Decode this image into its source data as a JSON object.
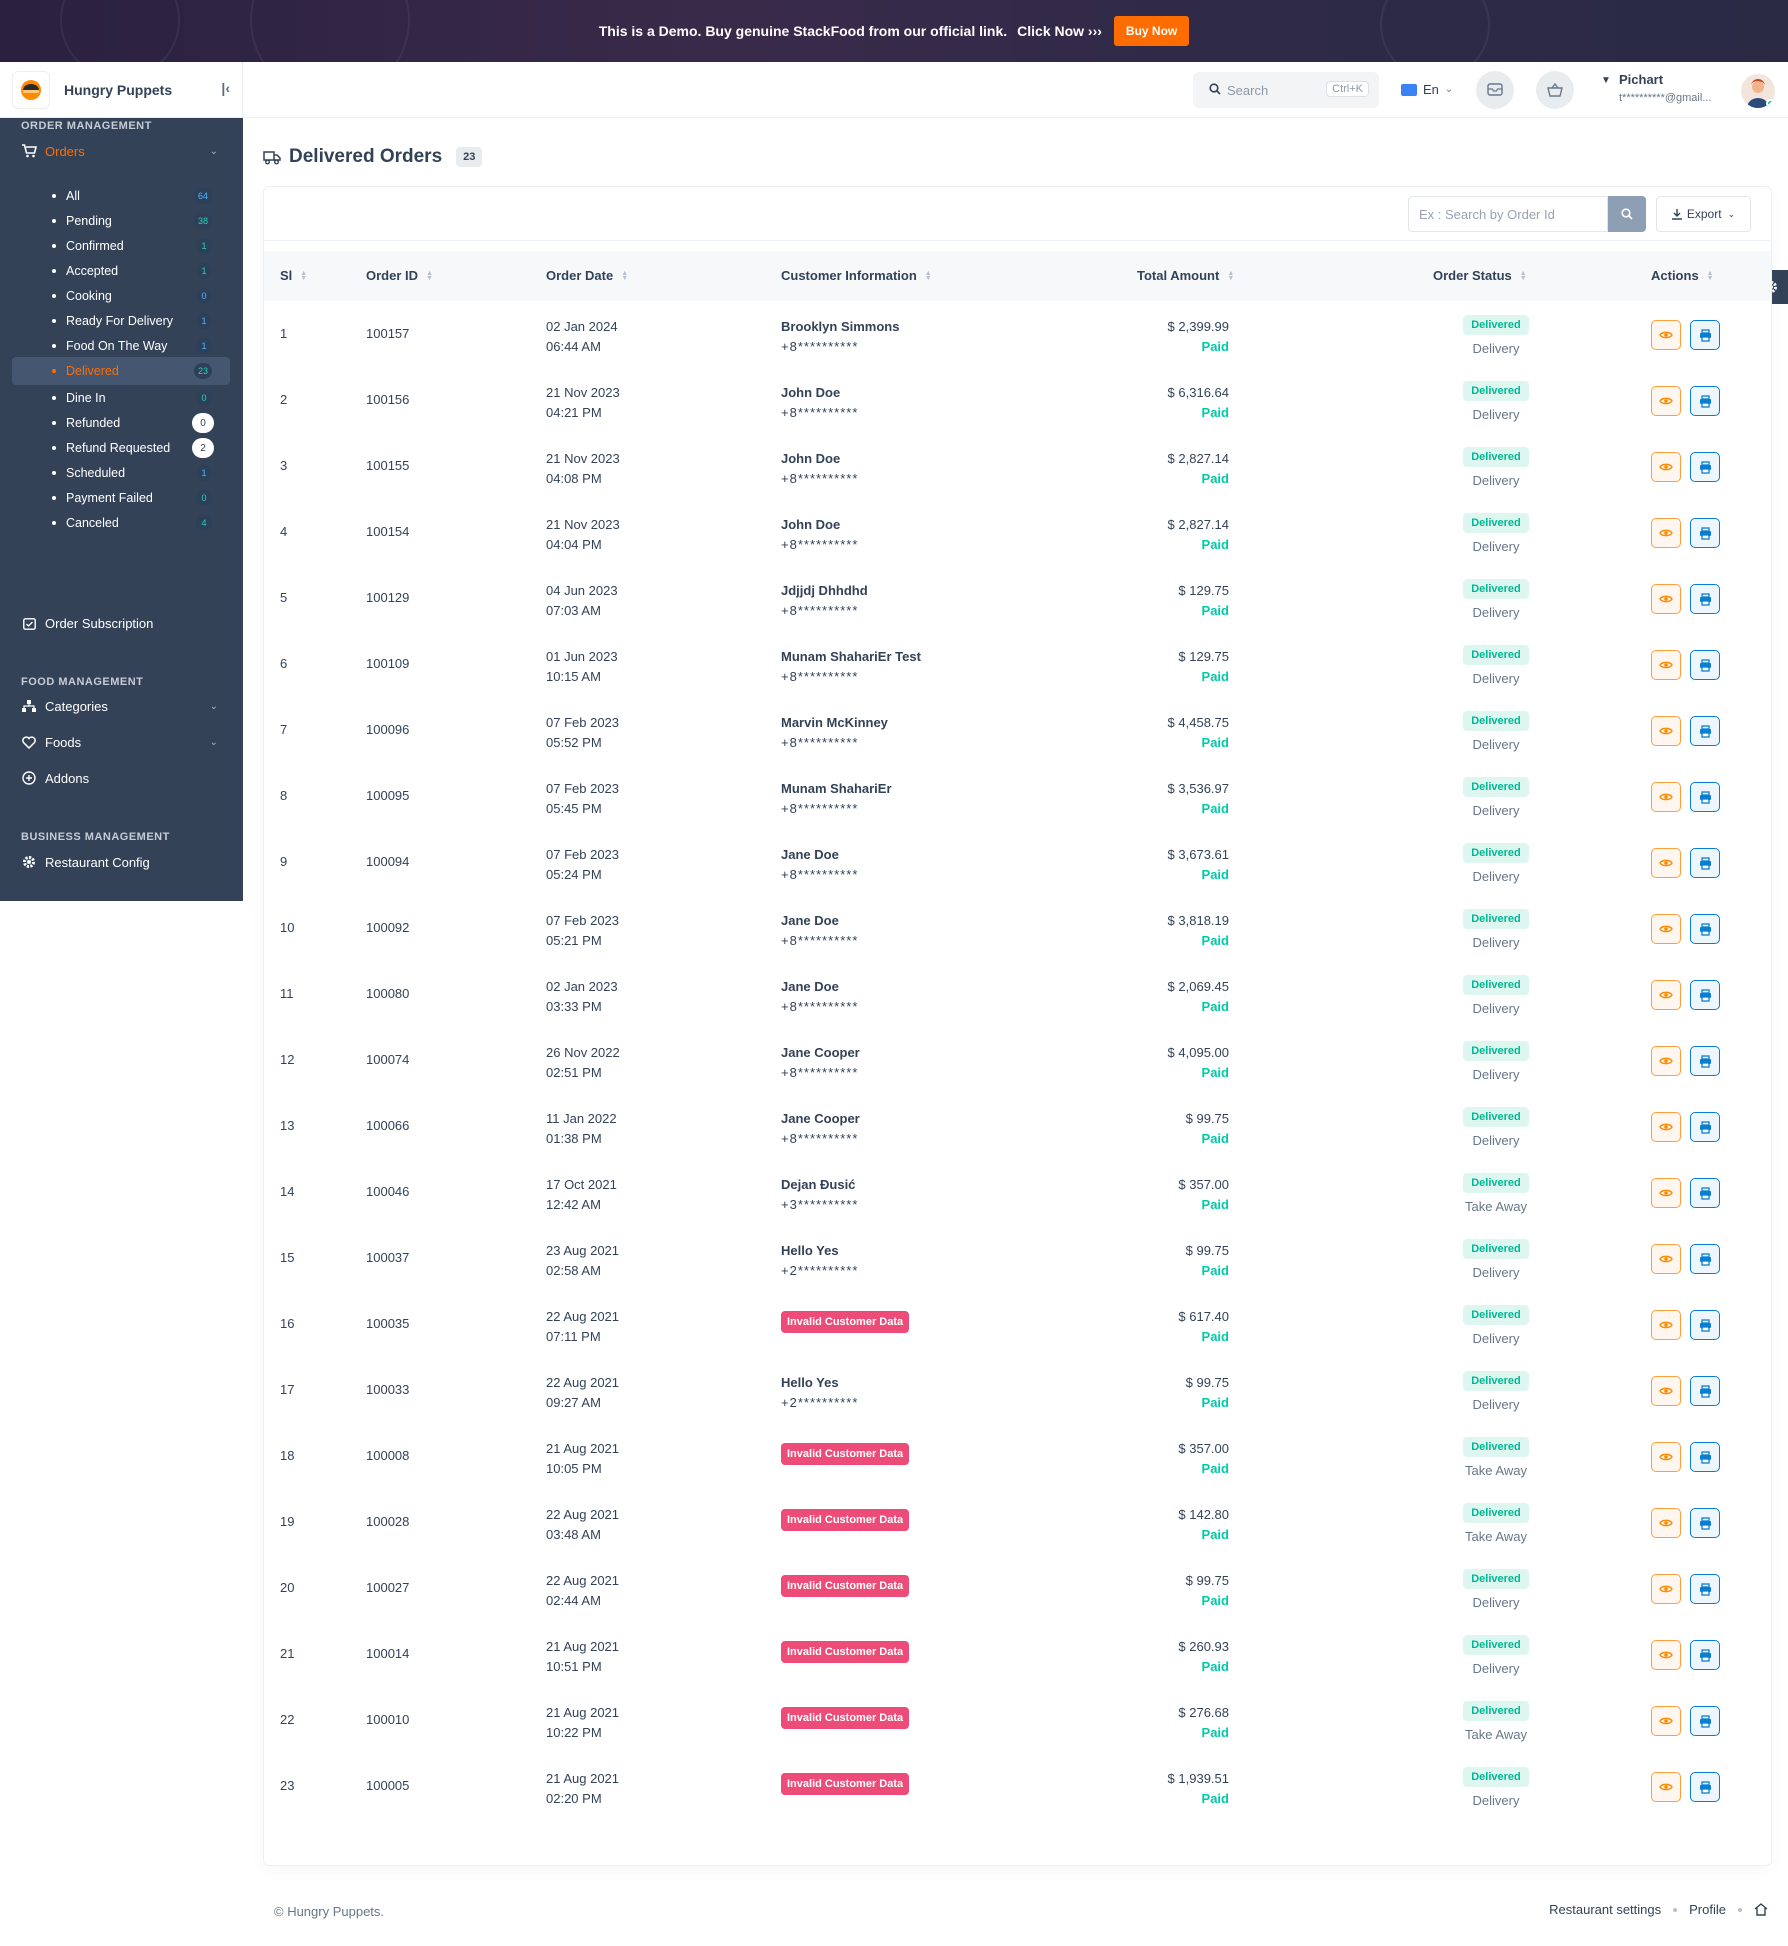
{
  "banner": {
    "text": "This is a Demo. Buy genuine StackFood from our official link.",
    "click_now": "Click Now ›››",
    "buy_now": "Buy Now"
  },
  "brand": {
    "name": "Hungry Puppets"
  },
  "topbar": {
    "search_placeholder": "Search",
    "shortcut": "Ctrl+K",
    "language": "En",
    "user_name": "Pichart",
    "user_email": "t**********@gmail..."
  },
  "sidebar": {
    "order_management": "ORDER MANAGEMENT",
    "orders_label": "Orders",
    "order_items": [
      {
        "label": "All",
        "count": "64",
        "style": "blue"
      },
      {
        "label": "Pending",
        "count": "38",
        "style": "green"
      },
      {
        "label": "Confirmed",
        "count": "1",
        "style": "green"
      },
      {
        "label": "Accepted",
        "count": "1",
        "style": "green"
      },
      {
        "label": "Cooking",
        "count": "0",
        "style": "blue"
      },
      {
        "label": "Ready For Delivery",
        "count": "1",
        "style": "blue"
      },
      {
        "label": "Food On The Way",
        "count": "1",
        "style": "blue"
      },
      {
        "label": "Delivered",
        "count": "23",
        "style": "green",
        "active": true
      },
      {
        "label": "Dine In",
        "count": "0",
        "style": "green"
      },
      {
        "label": "Refunded",
        "count": "0",
        "style": "white"
      },
      {
        "label": "Refund Requested",
        "count": "2",
        "style": "white"
      },
      {
        "label": "Scheduled",
        "count": "1",
        "style": "blue"
      },
      {
        "label": "Payment Failed",
        "count": "0",
        "style": "green"
      },
      {
        "label": "Canceled",
        "count": "4",
        "style": "green"
      }
    ],
    "order_subscription": "Order Subscription",
    "food_management": "FOOD MANAGEMENT",
    "categories": "Categories",
    "foods": "Foods",
    "addons": "Addons",
    "business_management": "BUSINESS MANAGEMENT",
    "restaurant_config": "Restaurant Config"
  },
  "page": {
    "title": "Delivered Orders",
    "count": "23",
    "search_placeholder": "Ex : Search by Order Id",
    "export_label": "Export"
  },
  "table": {
    "columns": [
      "Sl",
      "Order ID",
      "Order Date",
      "Customer Information",
      "Total Amount",
      "Order Status",
      "Actions"
    ],
    "paid_label": "Paid",
    "delivered_label": "Delivered",
    "invalid_label": "Invalid Customer Data",
    "rows": [
      {
        "sl": "1",
        "id": "100157",
        "date": "02 Jan 2024",
        "time": "06:44 AM",
        "name": "Brooklyn Simmons",
        "phone": "+8**********",
        "amount": "$ 2,399.99",
        "type": "Delivery"
      },
      {
        "sl": "2",
        "id": "100156",
        "date": "21 Nov 2023",
        "time": "04:21 PM",
        "name": "John Doe",
        "phone": "+8**********",
        "amount": "$ 6,316.64",
        "type": "Delivery"
      },
      {
        "sl": "3",
        "id": "100155",
        "date": "21 Nov 2023",
        "time": "04:08 PM",
        "name": "John Doe",
        "phone": "+8**********",
        "amount": "$ 2,827.14",
        "type": "Delivery"
      },
      {
        "sl": "4",
        "id": "100154",
        "date": "21 Nov 2023",
        "time": "04:04 PM",
        "name": "John Doe",
        "phone": "+8**********",
        "amount": "$ 2,827.14",
        "type": "Delivery"
      },
      {
        "sl": "5",
        "id": "100129",
        "date": "04 Jun 2023",
        "time": "07:03 AM",
        "name": "Jdjjdj Dhhdhd",
        "phone": "+8**********",
        "amount": "$ 129.75",
        "type": "Delivery"
      },
      {
        "sl": "6",
        "id": "100109",
        "date": "01 Jun 2023",
        "time": "10:15 AM",
        "name": "Munam ShahariEr Test",
        "phone": "+8**********",
        "amount": "$ 129.75",
        "type": "Delivery"
      },
      {
        "sl": "7",
        "id": "100096",
        "date": "07 Feb 2023",
        "time": "05:52 PM",
        "name": "Marvin McKinney",
        "phone": "+8**********",
        "amount": "$ 4,458.75",
        "type": "Delivery"
      },
      {
        "sl": "8",
        "id": "100095",
        "date": "07 Feb 2023",
        "time": "05:45 PM",
        "name": "Munam ShahariEr",
        "phone": "+8**********",
        "amount": "$ 3,536.97",
        "type": "Delivery"
      },
      {
        "sl": "9",
        "id": "100094",
        "date": "07 Feb 2023",
        "time": "05:24 PM",
        "name": "Jane Doe",
        "phone": "+8**********",
        "amount": "$ 3,673.61",
        "type": "Delivery"
      },
      {
        "sl": "10",
        "id": "100092",
        "date": "07 Feb 2023",
        "time": "05:21 PM",
        "name": "Jane Doe",
        "phone": "+8**********",
        "amount": "$ 3,818.19",
        "type": "Delivery"
      },
      {
        "sl": "11",
        "id": "100080",
        "date": "02 Jan 2023",
        "time": "03:33 PM",
        "name": "Jane Doe",
        "phone": "+8**********",
        "amount": "$ 2,069.45",
        "type": "Delivery"
      },
      {
        "sl": "12",
        "id": "100074",
        "date": "26 Nov 2022",
        "time": "02:51 PM",
        "name": "Jane Cooper",
        "phone": "+8**********",
        "amount": "$ 4,095.00",
        "type": "Delivery"
      },
      {
        "sl": "13",
        "id": "100066",
        "date": "11 Jan 2022",
        "time": "01:38 PM",
        "name": "Jane Cooper",
        "phone": "+8**********",
        "amount": "$ 99.75",
        "type": "Delivery"
      },
      {
        "sl": "14",
        "id": "100046",
        "date": "17 Oct 2021",
        "time": "12:42 AM",
        "name": "Dejan Đusić",
        "phone": "+3**********",
        "amount": "$ 357.00",
        "type": "Take Away"
      },
      {
        "sl": "15",
        "id": "100037",
        "date": "23 Aug 2021",
        "time": "02:58 AM",
        "name": "Hello Yes",
        "phone": "+2**********",
        "amount": "$ 99.75",
        "type": "Delivery"
      },
      {
        "sl": "16",
        "id": "100035",
        "date": "22 Aug 2021",
        "time": "07:11 PM",
        "invalid": true,
        "amount": "$ 617.40",
        "type": "Delivery"
      },
      {
        "sl": "17",
        "id": "100033",
        "date": "22 Aug 2021",
        "time": "09:27 AM",
        "name": "Hello Yes",
        "phone": "+2**********",
        "amount": "$ 99.75",
        "type": "Delivery"
      },
      {
        "sl": "18",
        "id": "100008",
        "date": "21 Aug 2021",
        "time": "10:05 PM",
        "invalid": true,
        "amount": "$ 357.00",
        "type": "Take Away"
      },
      {
        "sl": "19",
        "id": "100028",
        "date": "22 Aug 2021",
        "time": "03:48 AM",
        "invalid": true,
        "amount": "$ 142.80",
        "type": "Take Away"
      },
      {
        "sl": "20",
        "id": "100027",
        "date": "22 Aug 2021",
        "time": "02:44 AM",
        "invalid": true,
        "amount": "$ 99.75",
        "type": "Delivery"
      },
      {
        "sl": "21",
        "id": "100014",
        "date": "21 Aug 2021",
        "time": "10:51 PM",
        "invalid": true,
        "amount": "$ 260.93",
        "type": "Delivery"
      },
      {
        "sl": "22",
        "id": "100010",
        "date": "21 Aug 2021",
        "time": "10:22 PM",
        "invalid": true,
        "amount": "$ 276.68",
        "type": "Take Away"
      },
      {
        "sl": "23",
        "id": "100005",
        "date": "21 Aug 2021",
        "time": "02:20 PM",
        "invalid": true,
        "amount": "$ 1,939.51",
        "type": "Delivery"
      }
    ]
  },
  "footer": {
    "copyright": "© Hungry Puppets.",
    "restaurant_settings": "Restaurant settings",
    "profile": "Profile"
  },
  "colors": {
    "accent": "#ff6d00",
    "sidebar": "#334257",
    "paid": "#00c9a7",
    "invalid": "#ed4c78"
  }
}
